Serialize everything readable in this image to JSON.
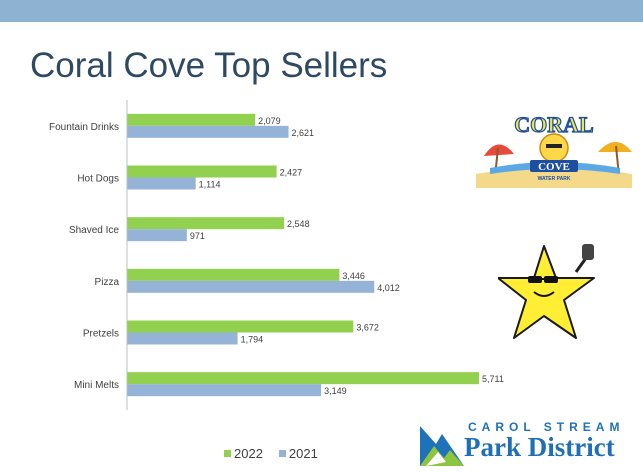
{
  "slide": {
    "title": "Coral Cove Top Sellers"
  },
  "colors": {
    "band": "#8eb3d2",
    "title": "#2e4964",
    "series_2022": "#92d050",
    "series_2021": "#95b3d7"
  },
  "logos": {
    "coral_cove_word": "CORAL",
    "coral_cove_word2": "COVE",
    "coral_cove_sub": "WATER PARK",
    "park_district_line1": "CAROL STREAM",
    "park_district_line2": "Park District"
  },
  "chart_data": {
    "type": "bar",
    "orientation": "horizontal",
    "title": "",
    "xlabel": "",
    "ylabel": "",
    "categories": [
      "Fountain Drinks",
      "Hot Dogs",
      "Shaved Ice",
      "Pizza",
      "Pretzels",
      "Mini Melts"
    ],
    "series": [
      {
        "name": "2022",
        "values": [
          2079,
          2427,
          2548,
          3446,
          3672,
          5711
        ],
        "labels": [
          "2,079",
          "2,427",
          "2,548",
          "3,446",
          "3,672",
          "5,711"
        ],
        "color": "#92d050"
      },
      {
        "name": "2021",
        "values": [
          2621,
          1114,
          971,
          4012,
          1794,
          3149
        ],
        "labels": [
          "2,621",
          "1,114",
          "971",
          "4,012",
          "1,794",
          "3,149"
        ],
        "color": "#95b3d7"
      }
    ],
    "xlim": [
      0,
      6000
    ],
    "grid": false,
    "legend": "bottom"
  }
}
